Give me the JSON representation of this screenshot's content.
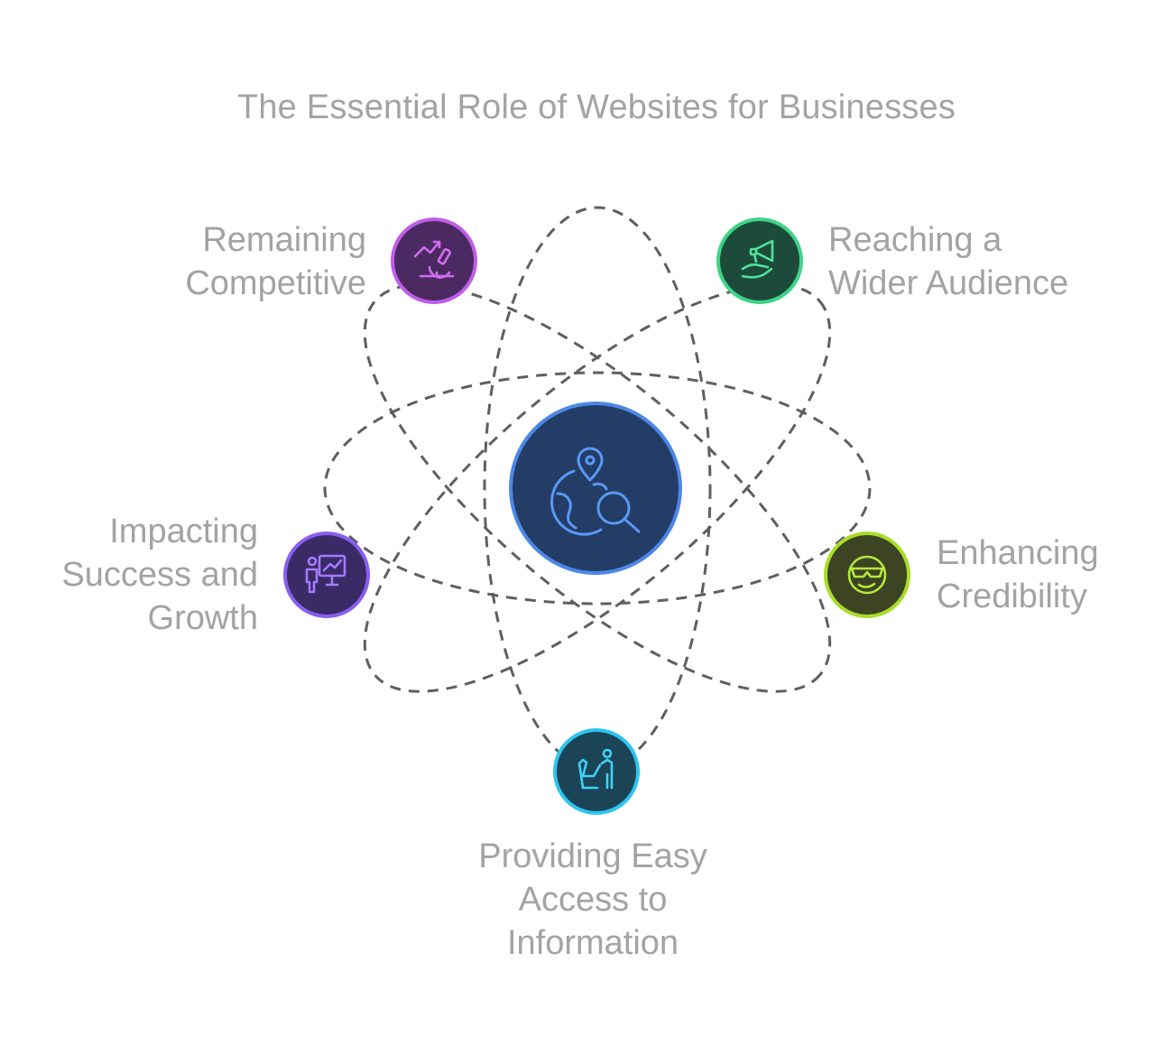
{
  "title": "The Essential Role of Websites for Businesses",
  "center": {
    "icon": "globe-search-icon"
  },
  "nodes": [
    {
      "id": "remaining-competitive",
      "label_lines": [
        "Remaining",
        "Competitive"
      ],
      "icon": "microscope-growth-icon",
      "fill": "#4a2a61",
      "stroke": "#c05ee8",
      "icon_color": "#d26bf0"
    },
    {
      "id": "reaching-wider-audience",
      "label_lines": [
        "Reaching a",
        "Wider Audience"
      ],
      "icon": "megaphone-hand-icon",
      "fill": "#1c4b3b",
      "stroke": "#3ed486",
      "icon_color": "#4fe39a"
    },
    {
      "id": "impacting-success-growth",
      "label_lines": [
        "Impacting",
        "Success and",
        "Growth"
      ],
      "icon": "presentation-growth-icon",
      "fill": "#3a2a66",
      "stroke": "#8a5ef0",
      "icon_color": "#a27bff"
    },
    {
      "id": "enhancing-credibility",
      "label_lines": [
        "Enhancing",
        "Credibility"
      ],
      "icon": "cool-sunglasses-icon",
      "fill": "#3d4424",
      "stroke": "#a9dd2a",
      "icon_color": "#b6e83a"
    },
    {
      "id": "providing-easy-access",
      "label_lines": [
        "Providing Easy",
        "Access to",
        "Information"
      ],
      "icon": "person-at-desk-icon",
      "fill": "#1b4457",
      "stroke": "#2ec5ef",
      "icon_color": "#3fd2fa"
    }
  ],
  "colors": {
    "orbit": "#5f5f5f",
    "center_fill": "#243d66",
    "center_stroke": "#4c87e6",
    "center_icon": "#5a98f5",
    "text": "#a3a3a3"
  }
}
